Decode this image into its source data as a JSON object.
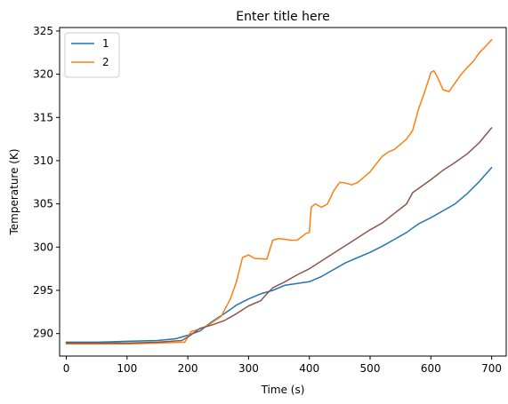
{
  "chart_data": {
    "type": "line",
    "title": "Enter title here",
    "xlabel": "Time (s)",
    "ylabel": "Temperature (K)",
    "xlim": [
      -11,
      724
    ],
    "ylim": [
      287.4,
      325.4
    ],
    "xticks": [
      0,
      100,
      200,
      300,
      400,
      500,
      600,
      700
    ],
    "yticks": [
      290,
      295,
      300,
      305,
      310,
      315,
      320,
      325
    ],
    "grid": false,
    "legend_position": "top-left",
    "series": [
      {
        "name": "1",
        "color": "#1f77b4",
        "in_legend": true,
        "x": [
          0,
          50,
          100,
          150,
          180,
          200,
          220,
          240,
          260,
          280,
          300,
          320,
          340,
          360,
          380,
          400,
          420,
          440,
          460,
          480,
          500,
          520,
          540,
          560,
          580,
          600,
          620,
          640,
          660,
          680,
          700
        ],
        "y": [
          289.0,
          289.0,
          289.1,
          289.2,
          289.4,
          289.8,
          290.3,
          291.4,
          292.3,
          293.3,
          294.0,
          294.6,
          295.0,
          295.6,
          295.8,
          296.0,
          296.6,
          297.4,
          298.2,
          298.8,
          299.4,
          300.1,
          300.9,
          301.7,
          302.7,
          303.4,
          304.2,
          305.0,
          306.2,
          307.6,
          309.2
        ]
      },
      {
        "name": "2",
        "color": "#ff7f0e",
        "in_legend": true,
        "x": [
          0,
          50,
          100,
          150,
          195,
          205,
          230,
          255,
          270,
          280,
          290,
          300,
          310,
          330,
          340,
          350,
          370,
          380,
          395,
          400,
          403,
          410,
          420,
          430,
          440,
          450,
          460,
          470,
          480,
          500,
          520,
          530,
          540,
          560,
          570,
          580,
          590,
          600,
          605,
          610,
          620,
          630,
          640,
          650,
          660,
          670,
          680,
          690,
          700
        ],
        "y": [
          288.8,
          288.8,
          288.8,
          288.9,
          289.0,
          290.2,
          290.8,
          292.0,
          294.0,
          296.0,
          298.8,
          299.1,
          298.7,
          298.6,
          300.8,
          301.0,
          300.8,
          300.8,
          301.6,
          301.7,
          304.6,
          305.0,
          304.6,
          305.0,
          306.5,
          307.5,
          307.4,
          307.2,
          307.5,
          308.7,
          310.5,
          311.0,
          311.3,
          312.5,
          313.5,
          316.0,
          318.0,
          320.2,
          320.4,
          319.8,
          318.2,
          318.0,
          319.0,
          320.0,
          320.8,
          321.5,
          322.5,
          323.2,
          324.0
        ]
      },
      {
        "name": "",
        "color": "#8c564b",
        "in_legend": false,
        "x": [
          0,
          50,
          100,
          150,
          190,
          200,
          220,
          240,
          260,
          280,
          300,
          320,
          330,
          340,
          360,
          380,
          400,
          420,
          440,
          460,
          480,
          500,
          520,
          540,
          560,
          570,
          580,
          600,
          620,
          640,
          660,
          680,
          700
        ],
        "y": [
          288.9,
          288.9,
          288.9,
          289.0,
          289.2,
          289.6,
          290.6,
          291.0,
          291.5,
          292.3,
          293.2,
          293.8,
          294.6,
          295.3,
          296.0,
          296.8,
          297.5,
          298.4,
          299.3,
          300.2,
          301.1,
          302.0,
          302.8,
          303.9,
          305.0,
          306.3,
          306.8,
          307.8,
          308.9,
          309.8,
          310.8,
          312.1,
          313.8
        ]
      }
    ]
  }
}
